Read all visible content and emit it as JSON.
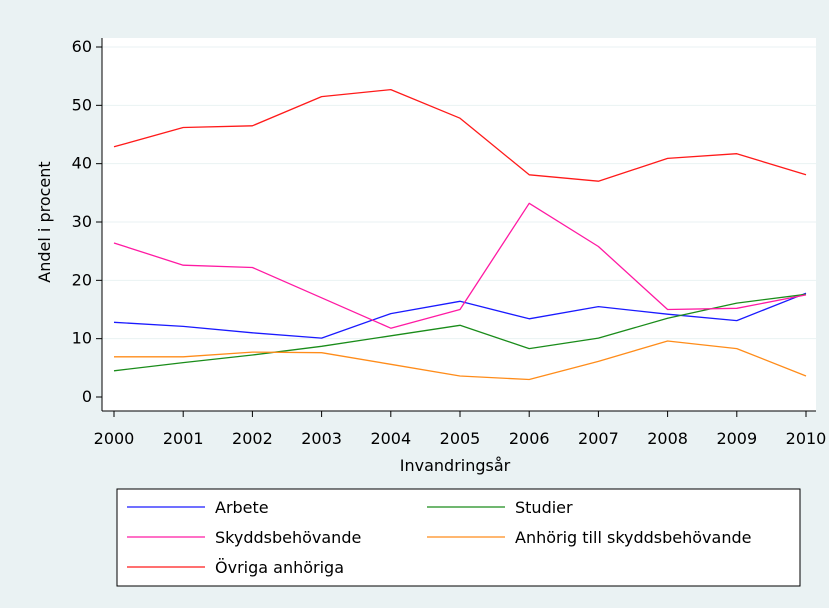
{
  "chart_data": {
    "type": "line",
    "title": "",
    "xlabel": "Invandringsår",
    "ylabel": "Andel i procent",
    "x": [
      "2000",
      "2001",
      "2002",
      "2003",
      "2004",
      "2005",
      "2006",
      "2007",
      "2008",
      "2009",
      "2010"
    ],
    "ylim": [
      0,
      60
    ],
    "yticks": [
      "0",
      "10",
      "20",
      "30",
      "40",
      "50",
      "60"
    ],
    "grid": true,
    "legend_position": "bottom",
    "background_color": "#eaf2f3",
    "plot_background_color": "#ffffff",
    "series": [
      {
        "name": "Arbete",
        "color": "#1a1aff",
        "values": [
          12.8,
          12.1,
          11.0,
          10.1,
          14.3,
          16.4,
          13.4,
          15.5,
          14.2,
          13.1,
          17.8
        ]
      },
      {
        "name": "Studier",
        "color": "#1a8c1a",
        "values": [
          4.5,
          5.9,
          7.2,
          8.7,
          10.5,
          12.3,
          8.3,
          10.1,
          13.5,
          16.1,
          17.6
        ]
      },
      {
        "name": "Skyddsbehövande",
        "color": "#ff1aa3",
        "values": [
          26.4,
          22.6,
          22.2,
          17.0,
          11.8,
          15.0,
          33.2,
          25.8,
          15.0,
          15.2,
          17.5
        ]
      },
      {
        "name": "Anhörig till skyddsbehövande",
        "color": "#ff8c1a",
        "values": [
          6.9,
          6.9,
          7.7,
          7.6,
          5.6,
          3.6,
          3.0,
          6.1,
          9.6,
          8.3,
          3.6
        ]
      },
      {
        "name": "Övriga anhöriga",
        "color": "#ff1a1a",
        "values": [
          42.9,
          46.2,
          46.5,
          51.5,
          52.7,
          47.8,
          38.1,
          37.0,
          40.9,
          41.7,
          38.1
        ]
      }
    ]
  }
}
